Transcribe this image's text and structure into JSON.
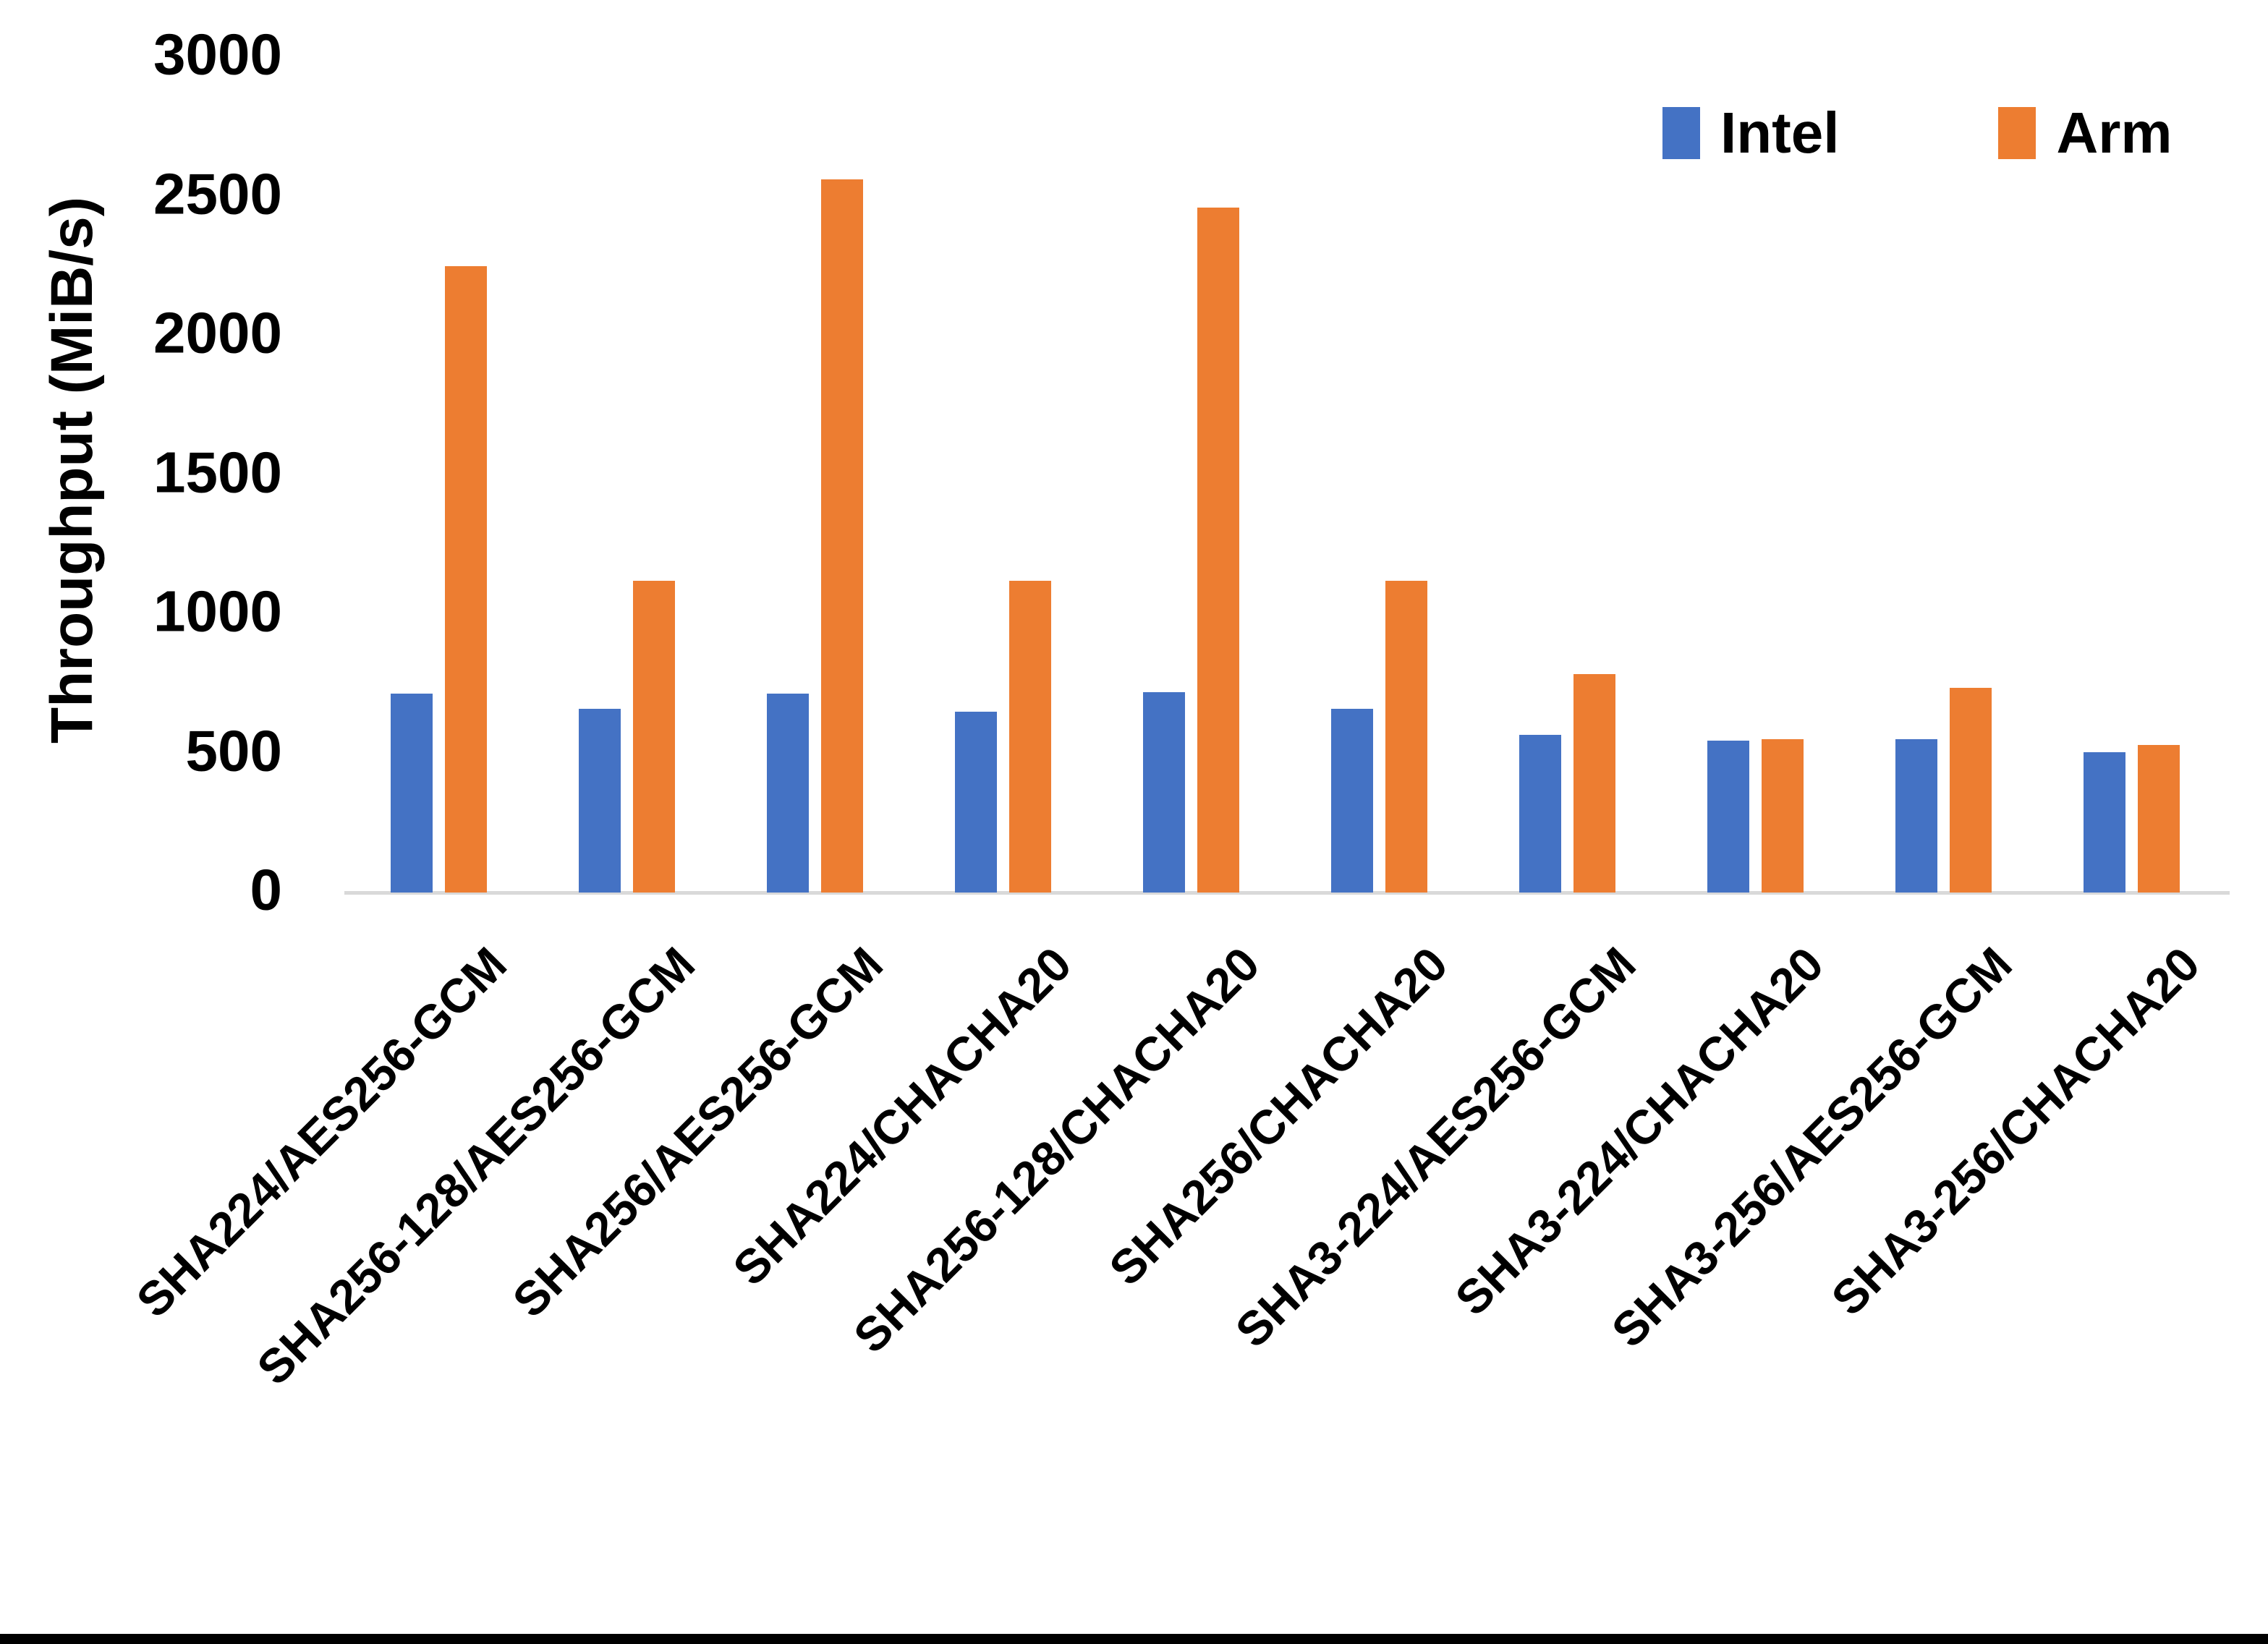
{
  "y_axis": {
    "title": "Throughput (MiB/s)"
  },
  "chart_data": {
    "type": "bar",
    "title": "",
    "xlabel": "",
    "ylabel": "Throughput (MiB/s)",
    "ylim": [
      0,
      3000
    ],
    "ytick_step": 500,
    "grid": false,
    "legend_position": "top-right",
    "categories": [
      "SHA224/AES256-GCM",
      "SHA256-128/AES256-GCM",
      "SHA256/AES256-GCM",
      "SHA224/CHACHA20",
      "SHA256-128/CHACHA20",
      "SHA256/CHACHA20",
      "SHA3-224/AES256-GCM",
      "SHA3-224/CHACHA20",
      "SHA3-256/AES256-GCM",
      "SHA3-256/CHACHA20"
    ],
    "series": [
      {
        "name": "Intel",
        "color": "#4472C4",
        "values": [
          715,
          660,
          715,
          650,
          720,
          660,
          565,
          545,
          550,
          505
        ]
      },
      {
        "name": "Arm",
        "color": "#ED7D31",
        "values": [
          2250,
          1120,
          2560,
          1120,
          2460,
          1120,
          785,
          550,
          735,
          530
        ]
      }
    ]
  },
  "frame": {
    "bottom_bar_color": "#000000"
  }
}
